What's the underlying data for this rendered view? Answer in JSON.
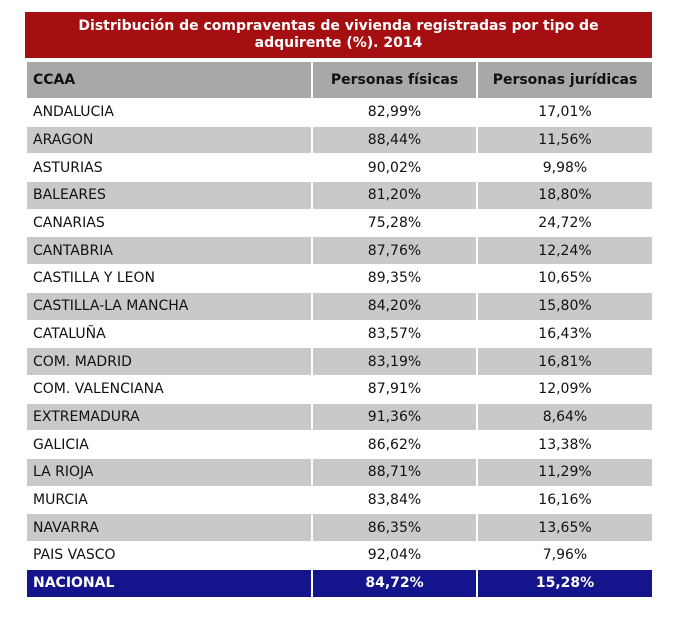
{
  "table": {
    "title": "Distribución de compraventas de vivienda registradas por tipo de adquirente (%). 2014",
    "header": [
      "CCAA",
      "Personas físicas",
      "Personas jurídicas"
    ],
    "rows": [
      [
        "ANDALUCIA",
        "82,99%",
        "17,01%"
      ],
      [
        "ARAGON",
        "88,44%",
        "11,56%"
      ],
      [
        "ASTURIAS",
        "90,02%",
        "9,98%"
      ],
      [
        "BALEARES",
        "81,20%",
        "18,80%"
      ],
      [
        "CANARIAS",
        "75,28%",
        "24,72%"
      ],
      [
        "CANTABRIA",
        "87,76%",
        "12,24%"
      ],
      [
        "CASTILLA Y LEON",
        "89,35%",
        "10,65%"
      ],
      [
        "CASTILLA-LA MANCHA",
        "84,20%",
        "15,80%"
      ],
      [
        "CATALUÑA",
        "83,57%",
        "16,43%"
      ],
      [
        "COM. MADRID",
        "83,19%",
        "16,81%"
      ],
      [
        "COM. VALENCIANA",
        "87,91%",
        "12,09%"
      ],
      [
        "EXTREMADURA",
        "91,36%",
        "8,64%"
      ],
      [
        "GALICIA",
        "86,62%",
        "13,38%"
      ],
      [
        "LA RIOJA",
        "88,71%",
        "11,29%"
      ],
      [
        "MURCIA",
        "83,84%",
        "16,16%"
      ],
      [
        "NAVARRA",
        "86,35%",
        "13,65%"
      ],
      [
        "PAIS VASCO",
        "92,04%",
        "7,96%"
      ]
    ],
    "total": [
      "NACIONAL",
      "84,72%",
      "15,28%"
    ]
  }
}
